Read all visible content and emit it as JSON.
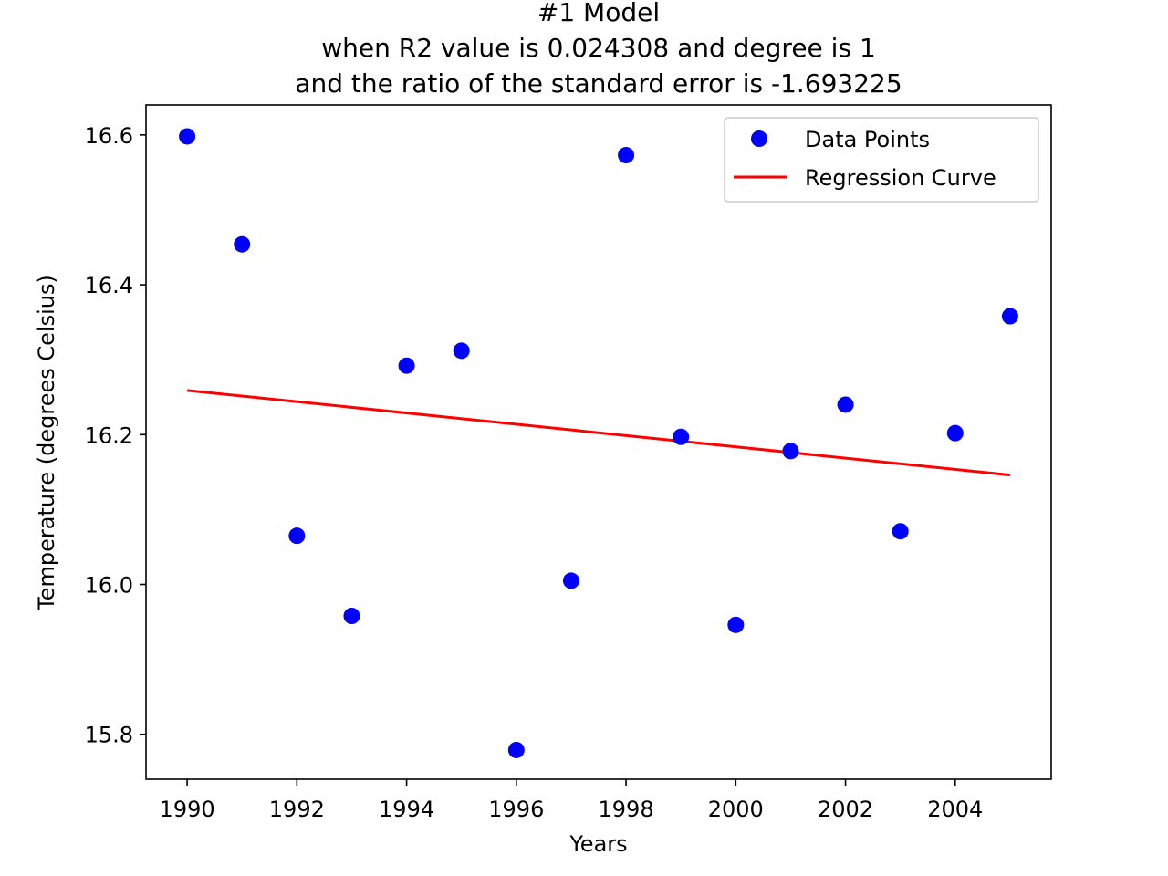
{
  "chart_data": {
    "type": "scatter",
    "title_lines": [
      "#1 Model",
      "when R2 value is 0.024308 and degree is 1",
      "and the ratio of the standard error is -1.693225"
    ],
    "xlabel": "Years",
    "ylabel": "Temperature (degrees Celsius)",
    "xlim": [
      1989.25,
      2005.75
    ],
    "ylim": [
      15.74,
      16.64
    ],
    "x_ticks": [
      1990,
      1992,
      1994,
      1996,
      1998,
      2000,
      2002,
      2004
    ],
    "y_ticks": [
      15.8,
      16.0,
      16.2,
      16.4,
      16.6
    ],
    "y_tick_labels": [
      "15.8",
      "16.0",
      "16.2",
      "16.4",
      "16.6"
    ],
    "grid": false,
    "legend_position": "top-right",
    "series": [
      {
        "name": "Data Points",
        "kind": "scatter",
        "color": "#0000ff",
        "x": [
          1990,
          1991,
          1992,
          1993,
          1994,
          1995,
          1996,
          1997,
          1998,
          1999,
          2000,
          2001,
          2002,
          2003,
          2004,
          2005
        ],
        "y": [
          16.598,
          16.454,
          16.065,
          15.958,
          16.292,
          16.312,
          15.779,
          16.005,
          16.573,
          16.197,
          15.946,
          16.178,
          16.24,
          16.071,
          16.202,
          16.358
        ]
      },
      {
        "name": "Regression Curve",
        "kind": "line",
        "color": "#ff0000",
        "x": [
          1990,
          2005
        ],
        "y": [
          16.259,
          16.146
        ]
      }
    ]
  }
}
